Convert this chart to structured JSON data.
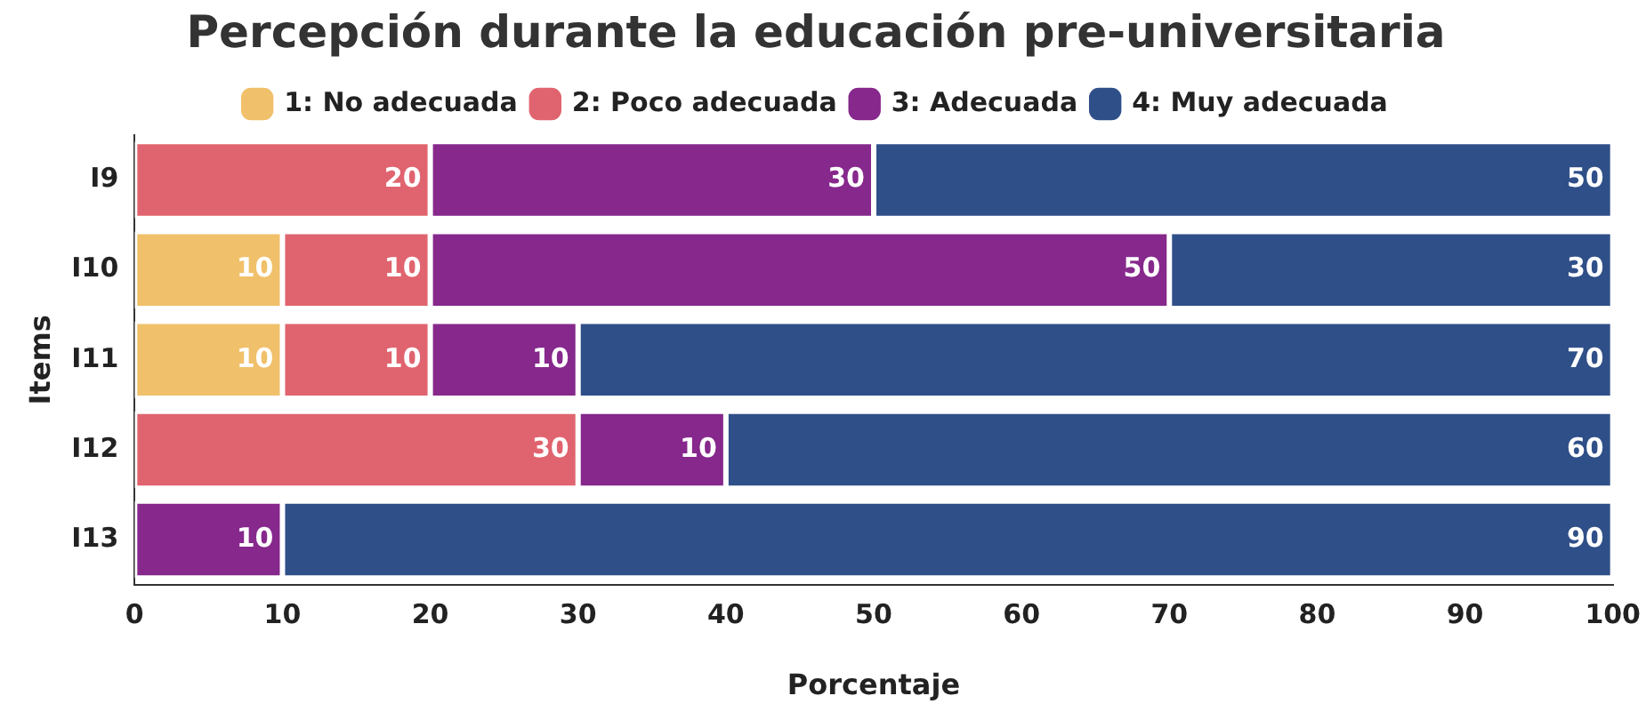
{
  "chart_data": {
    "type": "bar",
    "orientation": "horizontal",
    "stacked": true,
    "title": "Percepción durante la educación pre-universitaria",
    "xlabel": "Porcentaje",
    "ylabel": "Items",
    "categories": [
      "I9",
      "I10",
      "I11",
      "I12",
      "I13"
    ],
    "series": [
      {
        "name": "1: No adecuada",
        "color": "#f0c06a",
        "values": [
          null,
          10,
          10,
          null,
          null
        ]
      },
      {
        "name": "2: Poco adecuada",
        "color": "#e0646f",
        "values": [
          20,
          10,
          10,
          30,
          null
        ]
      },
      {
        "name": "3: Adecuada",
        "color": "#86288c",
        "values": [
          30,
          50,
          10,
          10,
          10
        ]
      },
      {
        "name": "4: Muy adecuada",
        "color": "#2f4f88",
        "values": [
          50,
          30,
          70,
          60,
          90
        ]
      }
    ],
    "xlim": [
      0,
      100
    ],
    "xticks": [
      0,
      10,
      20,
      30,
      40,
      50,
      60,
      70,
      80,
      90,
      100
    ],
    "grid": false,
    "legend": "top",
    "data_labels": true
  }
}
